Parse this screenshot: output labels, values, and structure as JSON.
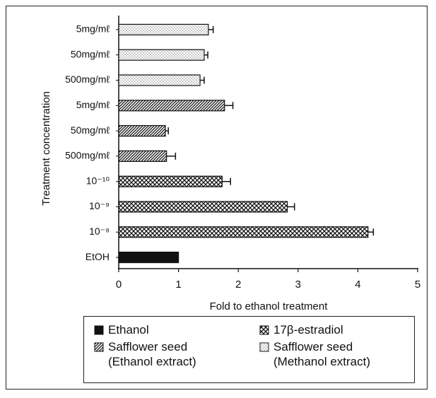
{
  "chart_data": {
    "type": "bar",
    "orientation": "horizontal",
    "categories": [
      "5mg/mℓ",
      "50mg/mℓ",
      "500mg/mℓ",
      "5mg/mℓ",
      "50mg/mℓ",
      "500mg/mℓ",
      "10⁻¹⁰",
      "10⁻⁹",
      "10⁻⁸",
      "EtOH"
    ],
    "x_label": "Fold to ethanol treatment",
    "y_label": "Treatment concentration",
    "xlim": [
      0,
      5
    ],
    "xticks": [
      0,
      1,
      2,
      3,
      4,
      5
    ],
    "series": [
      {
        "name": "Ethanol",
        "color": "#111111",
        "pattern": "solid",
        "values": [
          null,
          null,
          null,
          null,
          null,
          null,
          null,
          null,
          null,
          1.0
        ],
        "errors": [
          null,
          null,
          null,
          null,
          null,
          null,
          null,
          null,
          null,
          null
        ]
      },
      {
        "name": "17β-estradiol",
        "color": "#111111",
        "pattern": "crosshatch",
        "values": [
          null,
          null,
          null,
          null,
          null,
          null,
          1.73,
          2.82,
          4.17,
          null
        ],
        "errors": [
          null,
          null,
          null,
          null,
          null,
          null,
          0.14,
          0.12,
          0.09,
          null
        ]
      },
      {
        "name": "Safflower seed\n(Ethanol extract)",
        "color": "#111111",
        "pattern": "diagonal",
        "values": [
          null,
          null,
          null,
          1.77,
          0.78,
          0.8,
          null,
          null,
          null,
          null
        ],
        "errors": [
          null,
          null,
          null,
          0.14,
          0.05,
          0.15,
          null,
          null,
          null,
          null
        ]
      },
      {
        "name": "Safflower seed\n(Methanol extract)",
        "color": "#111111",
        "pattern": "dots",
        "values": [
          1.5,
          1.43,
          1.36,
          null,
          null,
          null,
          null,
          null,
          null,
          null
        ],
        "errors": [
          0.08,
          0.06,
          0.07,
          null,
          null,
          null,
          null,
          null,
          null,
          null
        ]
      }
    ]
  }
}
